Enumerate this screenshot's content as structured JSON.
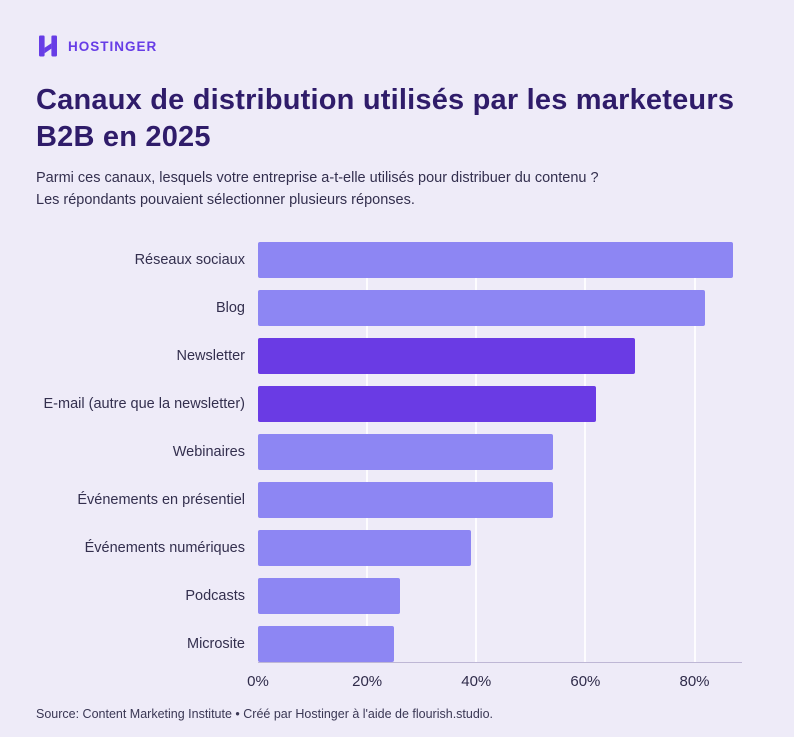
{
  "brand": {
    "name": "HOSTINGER",
    "color": "#673DE6"
  },
  "header": {
    "title_line1": "Canaux de distribution utilisés par les marketeurs",
    "title_line2": "B2B en 2025",
    "subtitle_line1": "Parmi ces canaux, lesquels votre entreprise a-t-elle utilisés pour distribuer du contenu ?",
    "subtitle_line2": "Les répondants pouvaient sélectionner plusieurs réponses."
  },
  "footer": {
    "source_text": "Source: Content Marketing Institute • Créé par Hostinger à l'aide de flourish.studio."
  },
  "chart_data": {
    "type": "bar",
    "orientation": "horizontal",
    "title": "Canaux de distribution utilisés par les marketeurs B2B en 2025",
    "categories": [
      "Réseaux sociaux",
      "Blog",
      "Newsletter",
      "E-mail (autre que la newsletter)",
      "Webinaires",
      "Événements en présentiel",
      "Événements numériques",
      "Podcasts",
      "Microsite"
    ],
    "values": [
      87,
      82,
      69,
      62,
      54,
      54,
      39,
      26,
      25
    ],
    "unit": "%",
    "highlight_indices": [
      2,
      3
    ],
    "highlighted_categories": [
      "Newsletter",
      "E-mail (autre que la newsletter)"
    ],
    "bar_color_default": "#8D86F3",
    "bar_color_highlight": "#6A3BE4",
    "background_color": "#EEEBF8",
    "xlim": [
      0,
      88.7
    ],
    "x_ticks": [
      0,
      20,
      40,
      60,
      80
    ],
    "x_tick_labels": [
      "0%",
      "20%",
      "40%",
      "60%",
      "80%"
    ],
    "grid": true,
    "legend": false
  }
}
